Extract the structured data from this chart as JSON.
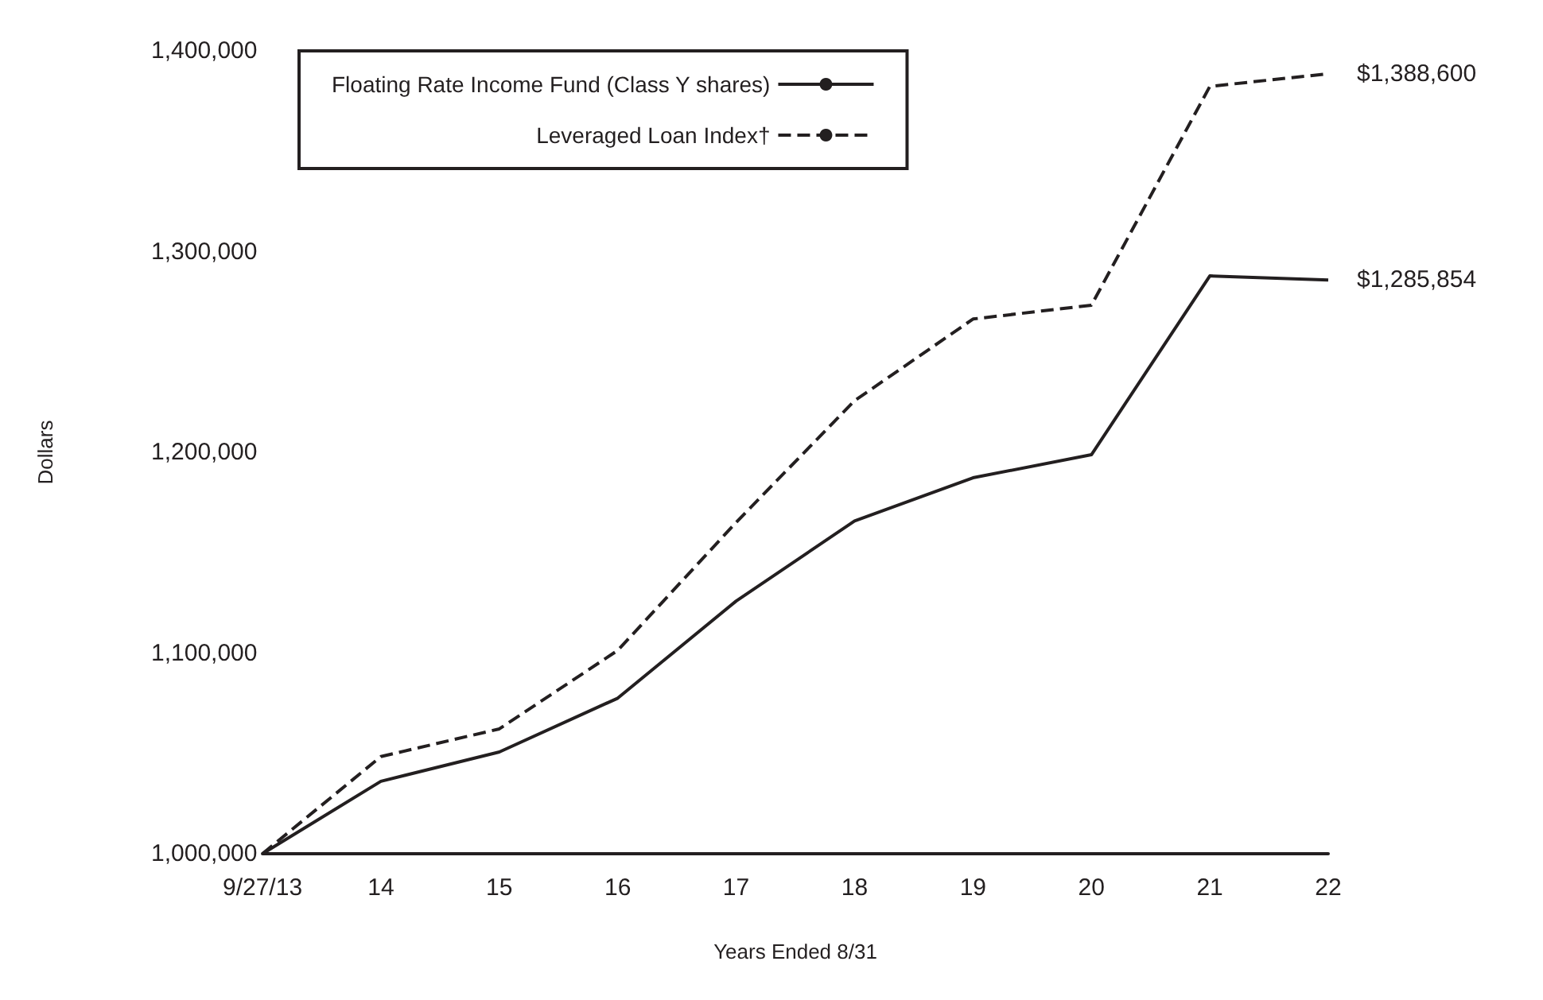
{
  "chart_data": {
    "type": "line",
    "xlabel": "Years Ended 8/31",
    "ylabel": "Dollars",
    "categories": [
      "9/27/13",
      "14",
      "15",
      "16",
      "17",
      "18",
      "19",
      "20",
      "21",
      "22"
    ],
    "series": [
      {
        "name": "Floating Rate Income Fund (Class Y shares)",
        "color": "#231f20",
        "line_style": "solid",
        "values": [
          1000000,
          1036100,
          1050700,
          1077500,
          1125900,
          1165800,
          1187300,
          1198800,
          1287900,
          1285854
        ]
      },
      {
        "name": "Leveraged Loan Index†",
        "color": "#231f20",
        "line_style": "dashed",
        "values": [
          1000000,
          1048400,
          1062200,
          1101300,
          1165100,
          1225700,
          1266400,
          1273300,
          1382300,
          1388600
        ]
      }
    ],
    "ylim": [
      1000000,
      1400000
    ],
    "yticks": [
      {
        "value": 1000000,
        "label": "1,000,000"
      },
      {
        "value": 1100000,
        "label": "1,100,000"
      },
      {
        "value": 1200000,
        "label": "1,200,000"
      },
      {
        "value": 1300000,
        "label": "1,300,000"
      },
      {
        "value": 1400000,
        "label": "1,400,000"
      }
    ],
    "grid": false,
    "legend": "top left",
    "marker": "none",
    "annotations": [
      {
        "text": "$1,388,600",
        "x": "22",
        "y": 1388600
      },
      {
        "text": "$1,285,854",
        "x": "22",
        "y": 1285854
      }
    ]
  }
}
